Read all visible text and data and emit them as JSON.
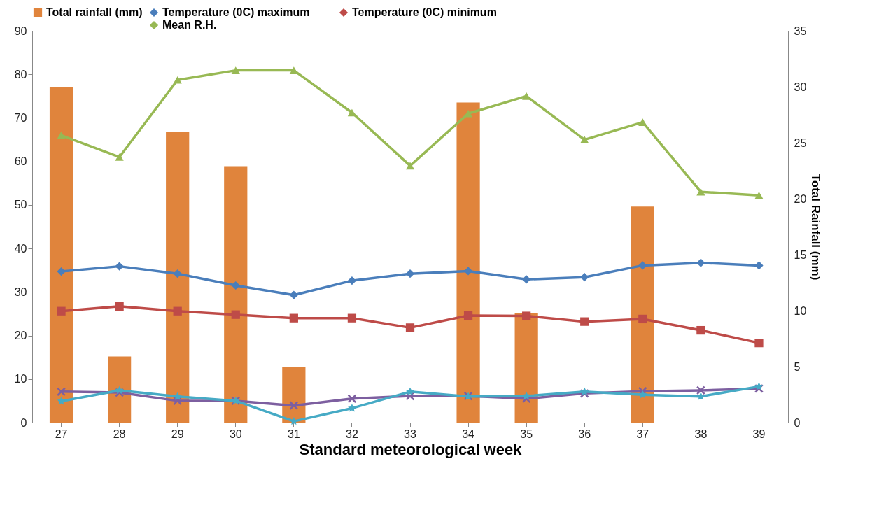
{
  "chart_data": {
    "type": "line",
    "xlabel": "Standard meteorological week",
    "y2label": "Total Rainfall (mm)",
    "categories": [
      "27",
      "28",
      "29",
      "30",
      "31",
      "32",
      "33",
      "34",
      "35",
      "36",
      "37",
      "38",
      "39"
    ],
    "ylim": [
      0,
      90
    ],
    "yticks": [
      0,
      10,
      20,
      30,
      40,
      50,
      60,
      70,
      80,
      90
    ],
    "y2lim": [
      0,
      35
    ],
    "y2ticks": [
      0,
      5,
      10,
      15,
      20,
      25,
      30,
      35
    ],
    "legend": "top",
    "grid": false,
    "series": [
      {
        "name": "Total rainfall (mm)",
        "type": "bar",
        "axis": "y2",
        "color": "#e0843c",
        "values": [
          30.0,
          5.9,
          26.0,
          22.9,
          5.0,
          null,
          null,
          28.6,
          9.8,
          null,
          19.3,
          null,
          null
        ]
      },
      {
        "name": "Temperature (0C) maximum",
        "color": "#4a7ebb",
        "marker": "diamond",
        "values": [
          34.7,
          35.9,
          34.2,
          31.5,
          29.3,
          32.6,
          34.2,
          34.8,
          32.9,
          33.4,
          36.1,
          36.7,
          36.1
        ]
      },
      {
        "name": "Temperature (0C) minimum",
        "color": "#be4b48",
        "marker": "square",
        "values": [
          25.6,
          26.7,
          25.6,
          24.8,
          24.0,
          24.0,
          21.8,
          24.6,
          24.5,
          23.2,
          23.8,
          21.2,
          18.3
        ]
      },
      {
        "name": "Mean R.H.",
        "color": "#98b954",
        "marker": "triangle",
        "values": [
          66,
          61,
          78.7,
          80.9,
          80.9,
          71.2,
          59,
          71,
          75,
          65,
          69,
          53,
          52.2
        ]
      },
      {
        "color": "#7d5fa0",
        "marker": "cross",
        "values": [
          7.1,
          6.9,
          5.0,
          5.0,
          3.9,
          5.5,
          6.1,
          6.1,
          5.5,
          6.7,
          7.2,
          7.4,
          7.8
        ]
      },
      {
        "color": "#46aac5",
        "marker": "star",
        "values": [
          4.9,
          7.4,
          6.0,
          5.0,
          0.3,
          3.3,
          7.1,
          6.0,
          6.1,
          7.1,
          6.4,
          6.0,
          8.3
        ]
      }
    ]
  }
}
